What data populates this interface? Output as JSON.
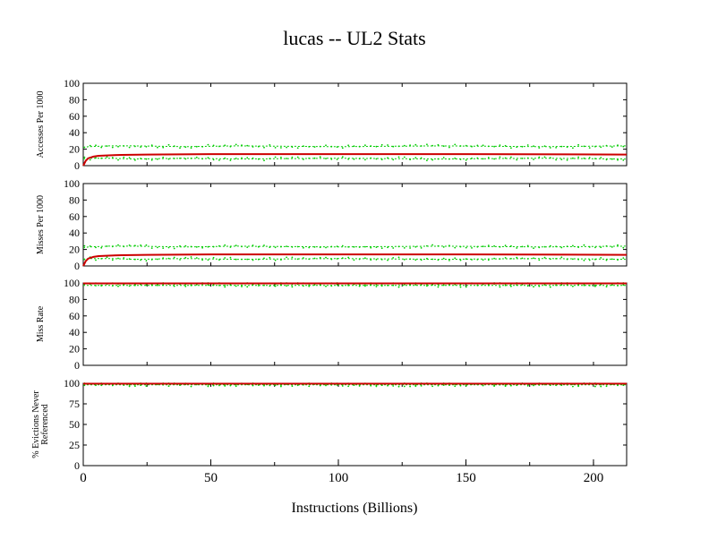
{
  "title": "lucas -- UL2  Stats",
  "xlabel": "Instructions (Billions)",
  "colors": {
    "mean": "#cc0000",
    "samples": "#00cc00",
    "axes": "#000000"
  },
  "chart_data": {
    "type": "line",
    "xlim": [
      0,
      213
    ],
    "xticks": [
      0,
      50,
      100,
      150,
      200
    ],
    "xtick_labels": [
      "0",
      "50",
      "100",
      "150",
      "200"
    ],
    "panels": [
      {
        "ylabel": [
          "Accesses Per 1000"
        ],
        "ylim": [
          0,
          100
        ],
        "yticks": [
          0,
          20,
          40,
          60,
          80,
          100
        ],
        "ytick_labels": [
          "0",
          "20",
          "40",
          "60",
          "80",
          "100"
        ],
        "series": [
          {
            "style": "mean",
            "x": [
              0,
              1,
              2,
              4,
              6,
              10,
              15,
              25,
              50,
              100,
              150,
              213
            ],
            "values": [
              0,
              6,
              9,
              11,
              12,
              12.5,
              13,
              13.5,
              14,
              14,
              14,
              13.5
            ]
          },
          {
            "style": "samples-upper",
            "x": [
              0,
              2,
              10,
              20,
              40,
              60,
              100,
              140,
              180,
              213
            ],
            "values": [
              22,
              23,
              24,
              24,
              23,
              24,
              23,
              24,
              23,
              24
            ]
          },
          {
            "style": "samples-lower",
            "x": [
              0,
              2,
              10,
              20,
              40,
              60,
              100,
              140,
              180,
              213
            ],
            "values": [
              8,
              9,
              9,
              8,
              9,
              8,
              9,
              8,
              9,
              8
            ]
          }
        ]
      },
      {
        "ylabel": [
          "Misses Per 1000"
        ],
        "ylim": [
          0,
          100
        ],
        "yticks": [
          0,
          20,
          40,
          60,
          80,
          100
        ],
        "ytick_labels": [
          "0",
          "20",
          "40",
          "60",
          "80",
          "100"
        ],
        "series": [
          {
            "style": "mean",
            "x": [
              0,
              1,
              2,
              4,
              6,
              10,
              15,
              25,
              50,
              100,
              150,
              213
            ],
            "values": [
              0,
              6,
              9,
              11,
              12,
              12.5,
              13,
              13.5,
              14,
              14,
              14,
              13.5
            ]
          },
          {
            "style": "samples-upper",
            "x": [
              0,
              2,
              10,
              20,
              40,
              60,
              100,
              140,
              180,
              213
            ],
            "values": [
              22,
              23,
              24,
              24,
              23,
              24,
              23,
              24,
              23,
              24
            ]
          },
          {
            "style": "samples-lower",
            "x": [
              0,
              2,
              10,
              20,
              40,
              60,
              100,
              140,
              180,
              213
            ],
            "values": [
              8,
              9,
              9,
              8,
              9,
              8,
              9,
              8,
              9,
              8
            ]
          }
        ]
      },
      {
        "ylabel": [
          "Miss Rate"
        ],
        "ylim": [
          0,
          100
        ],
        "yticks": [
          0,
          20,
          40,
          60,
          80,
          100
        ],
        "ytick_labels": [
          "0",
          "20",
          "40",
          "60",
          "80",
          "100"
        ],
        "series": [
          {
            "style": "mean",
            "x": [
              0,
              213
            ],
            "values": [
              99.5,
              99.5
            ]
          },
          {
            "style": "samples-upper",
            "x": [
              0,
              213
            ],
            "values": [
              99,
              99
            ]
          },
          {
            "style": "samples-lower",
            "x": [
              0,
              213
            ],
            "values": [
              97,
              97
            ]
          }
        ]
      },
      {
        "ylabel": [
          "% Evictions Never",
          "Referenced"
        ],
        "ylim": [
          0,
          100
        ],
        "yticks": [
          0,
          25,
          50,
          75,
          100
        ],
        "ytick_labels": [
          "0",
          "25",
          "50",
          "75",
          "100"
        ],
        "series": [
          {
            "style": "mean",
            "x": [
              0,
              213
            ],
            "values": [
              99.5,
              99.5
            ]
          },
          {
            "style": "samples-upper",
            "x": [
              0,
              213
            ],
            "values": [
              99,
              99
            ]
          },
          {
            "style": "samples-lower",
            "x": [
              0,
              213
            ],
            "values": [
              98,
              98
            ]
          }
        ]
      }
    ]
  }
}
